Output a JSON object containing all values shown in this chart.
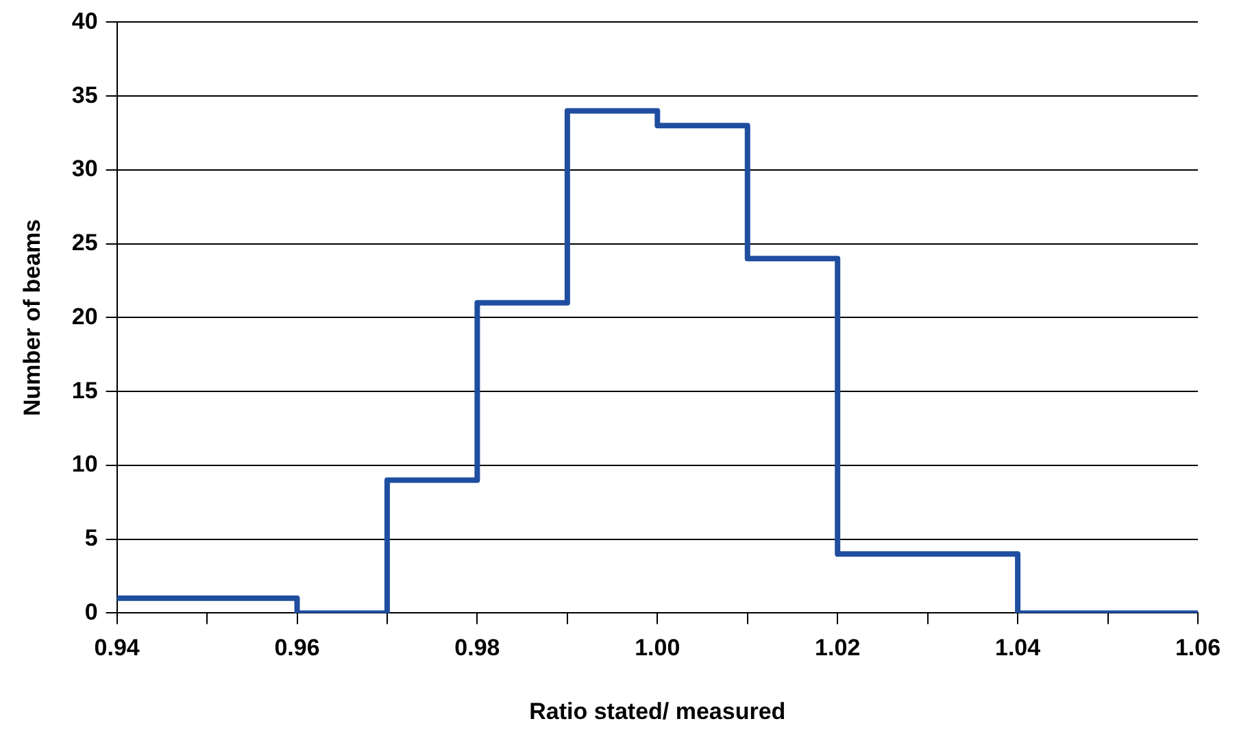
{
  "chart_data": {
    "type": "histogram",
    "xlabel": "Ratio stated/ measured",
    "ylabel": "Number of beams",
    "bins": [
      0.94,
      0.96,
      0.97,
      0.98,
      0.99,
      1.0,
      1.01,
      1.02,
      1.04,
      1.06
    ],
    "values": [
      1,
      0,
      9,
      21,
      34,
      33,
      24,
      4,
      0
    ],
    "color": "#1f4ea0",
    "xlim": [
      0.94,
      1.06
    ],
    "xticks": [
      {
        "value": 0.94,
        "label": "0.94"
      },
      {
        "value": 0.95,
        "label": null
      },
      {
        "value": 0.96,
        "label": "0.96"
      },
      {
        "value": 0.97,
        "label": null
      },
      {
        "value": 0.98,
        "label": "0.98"
      },
      {
        "value": 0.99,
        "label": null
      },
      {
        "value": 1.0,
        "label": "1.00"
      },
      {
        "value": 1.01,
        "label": null
      },
      {
        "value": 1.02,
        "label": "1.02"
      },
      {
        "value": 1.03,
        "label": null
      },
      {
        "value": 1.04,
        "label": "1.04"
      },
      {
        "value": 1.05,
        "label": null
      },
      {
        "value": 1.06,
        "label": "1.06"
      }
    ],
    "ylim": [
      0,
      40
    ],
    "yticks": [
      0,
      5,
      10,
      15,
      20,
      25,
      30,
      35,
      40
    ],
    "grid": "y",
    "legend": false
  }
}
